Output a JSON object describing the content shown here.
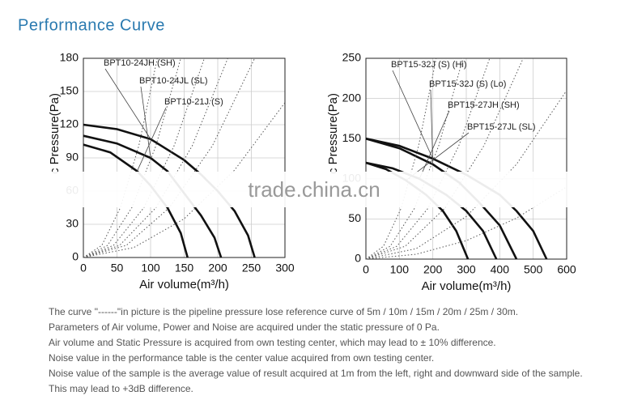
{
  "header": {
    "title": "Performance Curve"
  },
  "watermark": "trade.china.cn",
  "chart_data": [
    {
      "type": "line",
      "xlabel": "Air volume(m³/h)",
      "ylabel": "c Pressure(Pa)",
      "xlim": [
        0,
        300
      ],
      "xticks": [
        0,
        50,
        100,
        150,
        200,
        250,
        300
      ],
      "ylim": [
        0,
        180
      ],
      "yticks": [
        0,
        30,
        60,
        90,
        120,
        150,
        180
      ],
      "grid": true,
      "series": [
        {
          "name": "BPT10-24JH (SH)",
          "color": "#111111",
          "style": "solid",
          "x": [
            0,
            50,
            100,
            150,
            175,
            200,
            225,
            245,
            255
          ],
          "values": [
            120,
            116,
            107,
            88,
            75,
            60,
            42,
            20,
            0
          ]
        },
        {
          "name": "BPT10-24JL (SL)",
          "color": "#111111",
          "style": "solid",
          "x": [
            0,
            50,
            100,
            125,
            150,
            175,
            195,
            205
          ],
          "values": [
            110,
            103,
            90,
            78,
            58,
            38,
            18,
            0
          ]
        },
        {
          "name": "BPT10-21J (S)",
          "color": "#111111",
          "style": "solid",
          "x": [
            0,
            40,
            80,
            100,
            125,
            145,
            155
          ],
          "values": [
            102,
            95,
            78,
            65,
            45,
            22,
            0
          ]
        },
        {
          "color": "#555555",
          "style": "dotted",
          "x": [
            0,
            27.5,
            55,
            82.5,
            110
          ],
          "values": [
            0,
            11,
            45,
            101,
            180
          ]
        },
        {
          "color": "#555555",
          "style": "dotted",
          "x": [
            0,
            36,
            72,
            108,
            145
          ],
          "values": [
            0,
            11,
            45,
            101,
            180
          ]
        },
        {
          "color": "#555555",
          "style": "dotted",
          "x": [
            0,
            45,
            90,
            135,
            180
          ],
          "values": [
            0,
            11,
            45,
            101,
            180
          ]
        },
        {
          "color": "#555555",
          "style": "dotted",
          "x": [
            0,
            54,
            108,
            162,
            215
          ],
          "values": [
            0,
            11,
            45,
            101,
            180
          ]
        },
        {
          "color": "#555555",
          "style": "dotted",
          "x": [
            0,
            64,
            128,
            192,
            255
          ],
          "values": [
            0,
            11,
            45,
            101,
            180
          ]
        },
        {
          "color": "#555555",
          "style": "dotted",
          "x": [
            0,
            75,
            150,
            225,
            300
          ],
          "values": [
            0,
            9,
            35,
            79,
            140
          ]
        }
      ]
    },
    {
      "type": "line",
      "xlabel": "Air volume(m³/h)",
      "ylabel": "c Pressure(Pa)",
      "xlim": [
        0,
        600
      ],
      "xticks": [
        0,
        100,
        200,
        300,
        400,
        500,
        600
      ],
      "ylim": [
        0,
        250
      ],
      "yticks": [
        0,
        50,
        100,
        150,
        200,
        250
      ],
      "grid": true,
      "series": [
        {
          "name": "BPT15-32J (S) (Hi)",
          "color": "#111111",
          "style": "solid",
          "x": [
            0,
            100,
            200,
            300,
            400,
            450,
            500,
            540
          ],
          "values": [
            150,
            141,
            125,
            105,
            80,
            60,
            35,
            0
          ]
        },
        {
          "name": "BPT15-32J (S) (Lo)",
          "color": "#111111",
          "style": "solid",
          "x": [
            0,
            100,
            200,
            280,
            340,
            400,
            450
          ],
          "values": [
            150,
            138,
            118,
            95,
            70,
            42,
            0
          ]
        },
        {
          "name": "BPT15-27JH (SH)",
          "color": "#111111",
          "style": "solid",
          "x": [
            0,
            80,
            160,
            240,
            300,
            350,
            390
          ],
          "values": [
            120,
            113,
            100,
            80,
            60,
            35,
            0
          ]
        },
        {
          "name": "BPT15-27JL (SL)",
          "color": "#111111",
          "style": "solid",
          "x": [
            0,
            60,
            120,
            180,
            230,
            270,
            305
          ],
          "values": [
            120,
            112,
            98,
            80,
            60,
            35,
            0
          ]
        },
        {
          "color": "#555555",
          "style": "dotted",
          "x": [
            0,
            52.5,
            105,
            157.5,
            210
          ],
          "values": [
            0,
            16,
            63,
            141,
            250
          ]
        },
        {
          "color": "#555555",
          "style": "dotted",
          "x": [
            0,
            72.5,
            145,
            217.5,
            290
          ],
          "values": [
            0,
            16,
            63,
            141,
            250
          ]
        },
        {
          "color": "#555555",
          "style": "dotted",
          "x": [
            0,
            92.5,
            185,
            277.5,
            370
          ],
          "values": [
            0,
            16,
            63,
            141,
            250
          ]
        },
        {
          "color": "#555555",
          "style": "dotted",
          "x": [
            0,
            117.5,
            235,
            352.5,
            470
          ],
          "values": [
            0,
            16,
            63,
            141,
            250
          ]
        },
        {
          "color": "#555555",
          "style": "dotted",
          "x": [
            0,
            150,
            300,
            450,
            600
          ],
          "values": [
            0,
            13,
            53,
            118,
            210
          ]
        },
        {
          "color": "#555555",
          "style": "dotted",
          "x": [
            0,
            150,
            300,
            450,
            600
          ],
          "values": [
            0,
            6,
            23,
            51,
            90
          ]
        }
      ]
    }
  ],
  "notes": [
    "The curve \"------\"in picture is the pipeline pressure lose reference curve of 5m / 10m / 15m / 20m / 25m / 30m.",
    "Parameters of Air volume, Power and Noise are acquired under the static pressure of 0 Pa.",
    "Air volume and Static Pressure is acquired from own testing center, which may lead to ± 10% difference.",
    "Noise value in the performance table is the center value acquired from own testing center.",
    "Noise value of the sample is the average value of result acquired at 1m from the left, right and downward side of the sample.",
    "This may lead to +3dB difference."
  ]
}
